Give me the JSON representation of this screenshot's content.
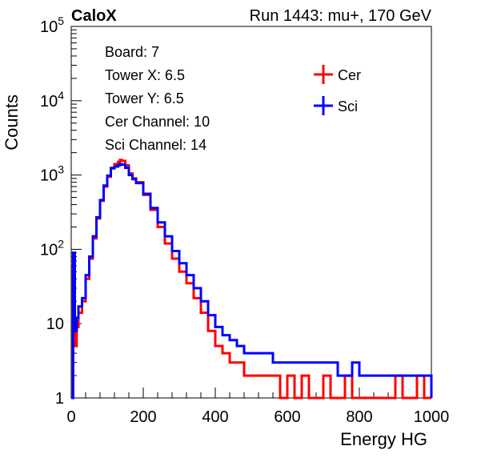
{
  "header": {
    "brand": "CaloX",
    "run_info": "Run 1443: mu+, 170 GeV"
  },
  "info_lines": [
    "Board: 7",
    "Tower X: 6.5",
    "Tower Y: 6.5",
    "Cer Channel: 10",
    "Sci Channel: 14"
  ],
  "chart_data": {
    "type": "line",
    "xlabel": "Energy HG",
    "ylabel": "Counts",
    "xlim": [
      0,
      1000
    ],
    "ylim": [
      1,
      100000
    ],
    "yscale": "log",
    "xticks": [
      0,
      200,
      400,
      600,
      800,
      1000
    ],
    "yticks": [
      {
        "value": 1,
        "base": "1",
        "exp": ""
      },
      {
        "value": 10,
        "base": "10",
        "exp": ""
      },
      {
        "value": 100,
        "base": "10",
        "exp": "2"
      },
      {
        "value": 1000,
        "base": "10",
        "exp": "3"
      },
      {
        "value": 10000,
        "base": "10",
        "exp": "4"
      },
      {
        "value": 100000,
        "base": "10",
        "exp": "5"
      }
    ],
    "grid": false,
    "legend_position": "top-right",
    "series": [
      {
        "name": "Cer",
        "color": "#ff0000",
        "x": [
          0,
          5,
          10,
          15,
          20,
          30,
          40,
          50,
          60,
          70,
          80,
          90,
          100,
          110,
          120,
          130,
          135,
          140,
          150,
          160,
          170,
          180,
          200,
          220,
          240,
          260,
          280,
          300,
          320,
          340,
          360,
          380,
          400,
          420,
          440,
          460,
          480,
          500,
          520,
          540,
          560,
          580,
          600,
          620,
          640,
          660,
          680,
          700,
          720,
          740,
          760,
          780,
          800,
          820,
          840,
          860,
          880,
          900,
          920,
          940,
          960,
          980,
          1000
        ],
        "y": [
          1,
          60,
          5,
          9,
          14,
          20,
          40,
          75,
          140,
          260,
          450,
          700,
          950,
          1250,
          1400,
          1500,
          1600,
          1550,
          1350,
          1050,
          900,
          800,
          540,
          340,
          200,
          120,
          75,
          50,
          35,
          22,
          14,
          8,
          5,
          4,
          3,
          3,
          2,
          2,
          2,
          2,
          2,
          1,
          2,
          1,
          2,
          1,
          1,
          2,
          1,
          1,
          2,
          1,
          1,
          1,
          1,
          1,
          1,
          2,
          1,
          1,
          2,
          1,
          1
        ]
      },
      {
        "name": "Sci",
        "color": "#0000ff",
        "x": [
          0,
          5,
          10,
          15,
          20,
          30,
          40,
          50,
          60,
          70,
          80,
          90,
          100,
          110,
          120,
          130,
          135,
          140,
          150,
          160,
          170,
          180,
          200,
          220,
          240,
          260,
          280,
          300,
          320,
          340,
          360,
          380,
          400,
          420,
          440,
          460,
          480,
          500,
          520,
          540,
          560,
          580,
          600,
          620,
          640,
          660,
          680,
          700,
          720,
          740,
          760,
          780,
          800,
          820,
          840,
          860,
          880,
          900,
          920,
          940,
          960,
          980,
          1000
        ],
        "y": [
          1,
          90,
          8,
          12,
          17,
          22,
          45,
          80,
          150,
          270,
          460,
          720,
          980,
          1230,
          1300,
          1350,
          1400,
          1380,
          1250,
          1000,
          880,
          780,
          560,
          360,
          230,
          150,
          95,
          65,
          45,
          30,
          20,
          13,
          9,
          7,
          6,
          5,
          4,
          4,
          4,
          4,
          3,
          3,
          3,
          3,
          3,
          3,
          3,
          3,
          3,
          2,
          2,
          3,
          2,
          2,
          2,
          2,
          2,
          2,
          2,
          2,
          2,
          2,
          1
        ]
      }
    ]
  }
}
